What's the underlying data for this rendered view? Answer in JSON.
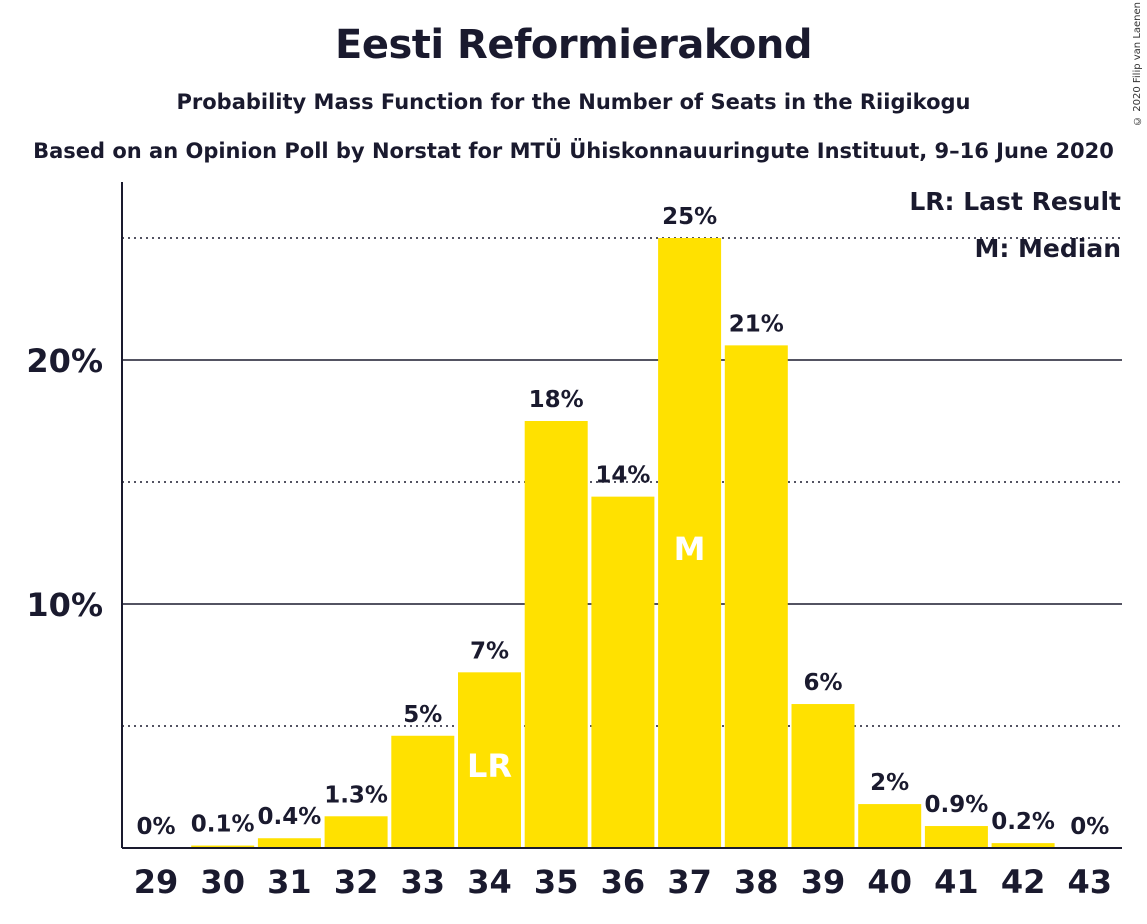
{
  "title": "Eesti Reformierakond",
  "subtitle": "Probability Mass Function for the Number of Seats in the Riigikogu",
  "source": "Based on an Opinion Poll by Norstat for MTÜ Ühiskonnauuringute Instituut, 9–16 June 2020",
  "copyright": "© 2020 Filip van Laenen",
  "legend": {
    "lr": "LR: Last Result",
    "m": "M: Median"
  },
  "colors": {
    "bar": "#FFE100",
    "text": "#1a1a2e"
  },
  "chart_data": {
    "type": "bar",
    "categories": [
      "29",
      "30",
      "31",
      "32",
      "33",
      "34",
      "35",
      "36",
      "37",
      "38",
      "39",
      "40",
      "41",
      "42",
      "43"
    ],
    "values": [
      0,
      0.1,
      0.4,
      1.3,
      4.6,
      7.2,
      17.5,
      14.4,
      25.0,
      20.6,
      5.9,
      1.8,
      0.9,
      0.2,
      0
    ],
    "labels": [
      "0%",
      "0.1%",
      "0.4%",
      "1.3%",
      "5%",
      "7%",
      "18%",
      "14%",
      "25%",
      "21%",
      "6%",
      "2%",
      "0.9%",
      "0.2%",
      "0%"
    ],
    "yticks": [
      {
        "value": 10,
        "label": "10%"
      },
      {
        "value": 20,
        "label": "20%"
      }
    ],
    "minor_gridlines": [
      5,
      15,
      25
    ],
    "ylim": [
      0,
      27
    ],
    "last_result": {
      "category": "34",
      "label": "LR"
    },
    "median": {
      "category": "37",
      "label": "M"
    },
    "legend_position": "top-right"
  }
}
